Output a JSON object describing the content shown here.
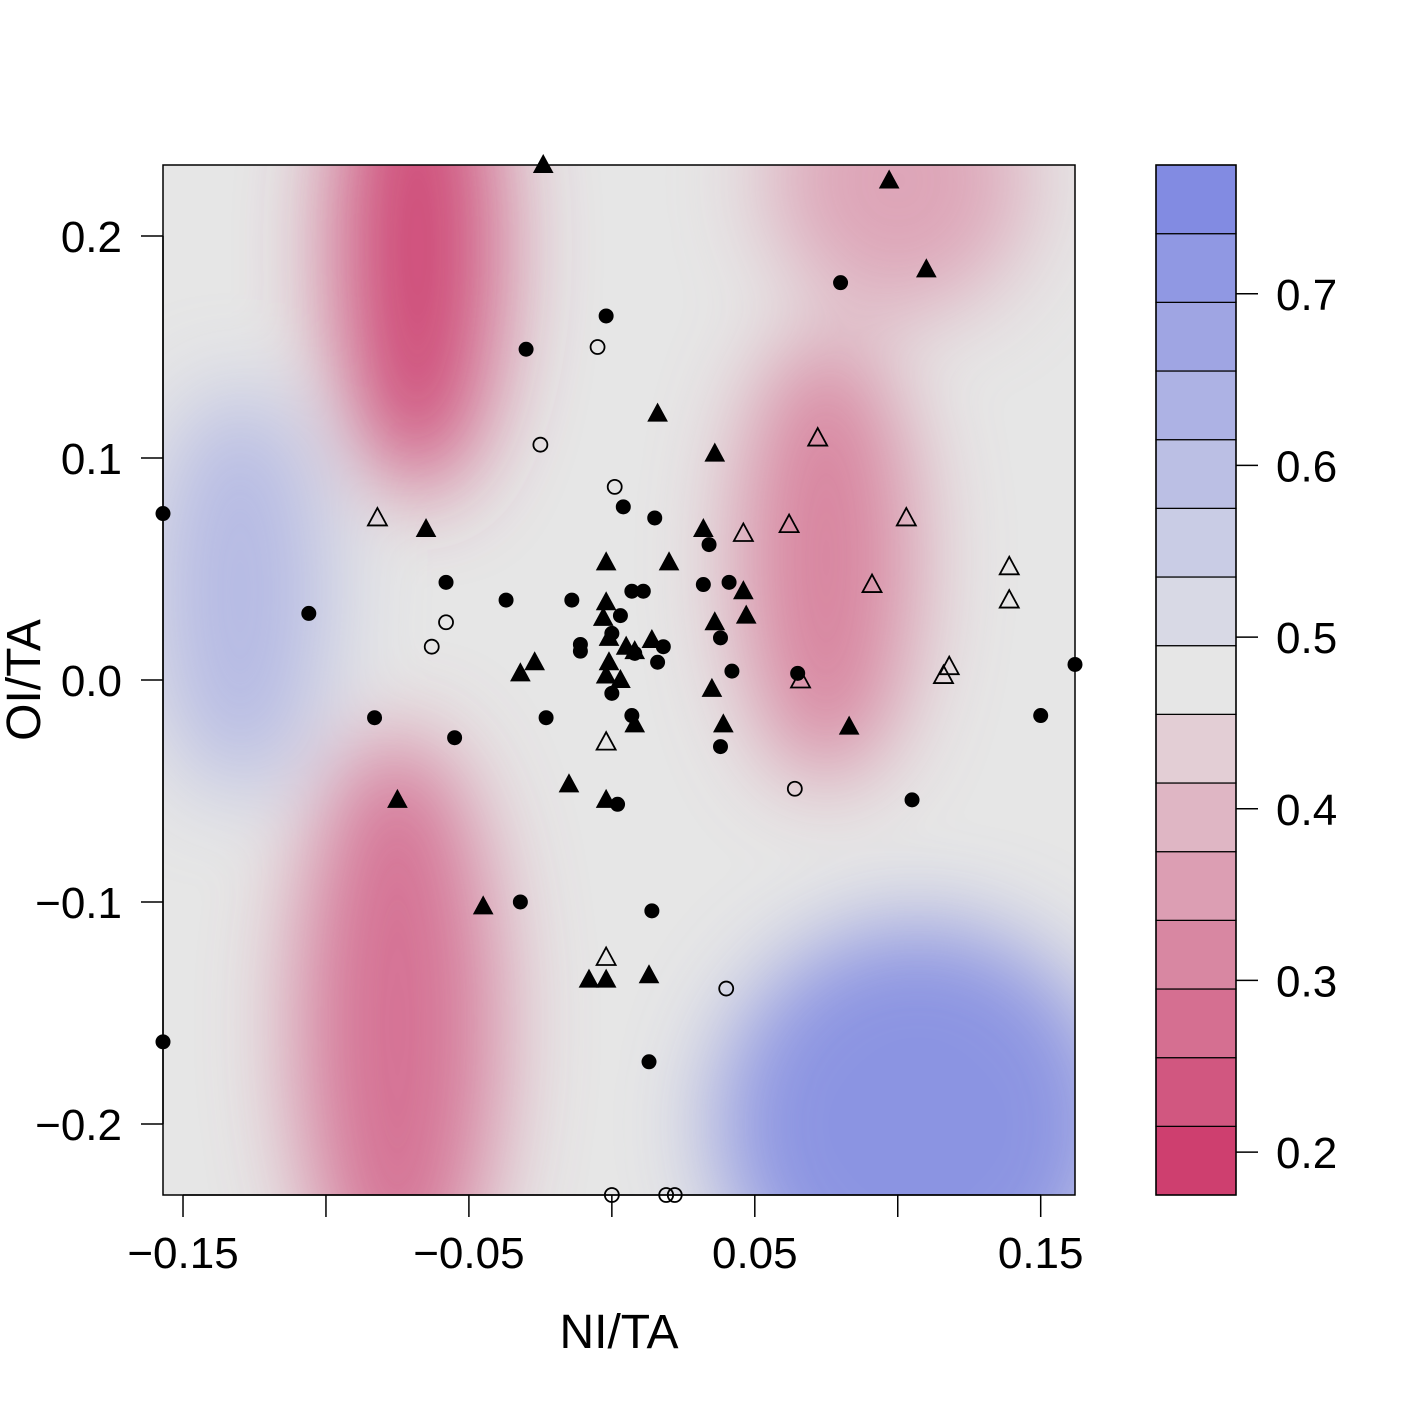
{
  "chart_data": {
    "type": "scatter",
    "subtype": "filled-contour with overlaid scatter points",
    "xlabel": "NI/TA",
    "ylabel": "OI/TA",
    "xlim": [
      -0.157,
      0.162
    ],
    "ylim": [
      -0.232,
      0.232
    ],
    "x_ticks": [
      -0.15,
      -0.1,
      -0.05,
      0,
      0.05,
      0.1,
      0.15
    ],
    "x_tick_labels": [
      "−0.15",
      "",
      "−0.05",
      "",
      "0.05",
      "",
      "0.15"
    ],
    "y_ticks": [
      0.2,
      0.1,
      0.0,
      -0.1,
      -0.2
    ],
    "y_tick_labels": [
      "0.2",
      "0.1",
      "0.0",
      "−0.1",
      "−0.2"
    ],
    "grid": false,
    "colorbar": {
      "range": [
        0.175,
        0.775
      ],
      "levels": 15,
      "low_color": "#cc3366",
      "mid_color": "#e6e6e6",
      "high_color": "#7b84e2",
      "ticks": [
        0.2,
        0.3,
        0.4,
        0.5,
        0.6,
        0.7
      ],
      "tick_labels": [
        "0.2",
        "0.3",
        "0.4",
        "0.5",
        "0.6",
        "0.7"
      ]
    },
    "contour_features": [
      {
        "x": -0.068,
        "y": 0.195,
        "value": 0.2
      },
      {
        "x": -0.075,
        "y": -0.155,
        "value": 0.27
      },
      {
        "x": 0.075,
        "y": 0.055,
        "value": 0.3
      },
      {
        "x": 0.1,
        "y": 0.225,
        "value": 0.36
      },
      {
        "x": 0.107,
        "y": -0.2,
        "value": 0.74
      },
      {
        "x": -0.13,
        "y": 0.04,
        "value": 0.62
      }
    ],
    "series": [
      {
        "marker": "filled-circle",
        "points": [
          [
            -0.157,
            0.075
          ],
          [
            -0.106,
            0.03
          ],
          [
            -0.083,
            -0.017
          ],
          [
            -0.058,
            0.044
          ],
          [
            -0.055,
            -0.026
          ],
          [
            -0.037,
            0.036
          ],
          [
            -0.03,
            0.149
          ],
          [
            -0.032,
            -0.1
          ],
          [
            -0.023,
            -0.017
          ],
          [
            -0.014,
            0.036
          ],
          [
            -0.011,
            0.013
          ],
          [
            -0.011,
            0.016
          ],
          [
            -0.002,
            0.164
          ],
          [
            0,
            0.021
          ],
          [
            0,
            -0.006
          ],
          [
            0.002,
            -0.056
          ],
          [
            0.003,
            0.029
          ],
          [
            0.004,
            0.078
          ],
          [
            0.007,
            -0.016
          ],
          [
            0.007,
            0.04
          ],
          [
            0.008,
            0.012
          ],
          [
            0.011,
            0.04
          ],
          [
            0.014,
            -0.104
          ],
          [
            0.015,
            0.073
          ],
          [
            0.016,
            0.008
          ],
          [
            0.018,
            0.015
          ],
          [
            0.032,
            0.043
          ],
          [
            0.034,
            0.061
          ],
          [
            0.038,
            0.019
          ],
          [
            0.038,
            -0.03
          ],
          [
            0.041,
            0.044
          ],
          [
            0.042,
            0.004
          ],
          [
            0.065,
            0.003
          ],
          [
            0.08,
            0.179
          ],
          [
            0.105,
            -0.054
          ],
          [
            0.15,
            -0.016
          ],
          [
            0.162,
            0.007
          ],
          [
            -0.157,
            -0.163
          ],
          [
            0.013,
            -0.172
          ]
        ]
      },
      {
        "marker": "open-circle",
        "points": [
          [
            -0.005,
            0.15
          ],
          [
            -0.025,
            0.106
          ],
          [
            0.001,
            0.087
          ],
          [
            -0.058,
            0.026
          ],
          [
            -0.063,
            0.015
          ],
          [
            0.064,
            -0.049
          ],
          [
            0.04,
            -0.139
          ],
          [
            0,
            -0.232
          ],
          [
            0.019,
            -0.232
          ],
          [
            0.022,
            -0.232
          ]
        ]
      },
      {
        "marker": "filled-triangle",
        "points": [
          [
            -0.024,
            0.232
          ],
          [
            0.097,
            0.225
          ],
          [
            0.11,
            0.185
          ],
          [
            0.016,
            0.12
          ],
          [
            0.036,
            0.102
          ],
          [
            -0.065,
            0.068
          ],
          [
            0.032,
            0.068
          ],
          [
            -0.002,
            0.053
          ],
          [
            0.02,
            0.053
          ],
          [
            0.046,
            0.04
          ],
          [
            -0.002,
            0.035
          ],
          [
            0.047,
            0.029
          ],
          [
            -0.003,
            0.028
          ],
          [
            0.036,
            0.026
          ],
          [
            -0.001,
            0.019
          ],
          [
            0.014,
            0.018
          ],
          [
            0.005,
            0.015
          ],
          [
            0.008,
            0.013
          ],
          [
            -0.027,
            0.008
          ],
          [
            -0.032,
            0.003
          ],
          [
            -0.001,
            0.008
          ],
          [
            0.003,
            0.0
          ],
          [
            -0.002,
            0.002
          ],
          [
            0.035,
            -0.004
          ],
          [
            0.039,
            -0.02
          ],
          [
            0.008,
            -0.02
          ],
          [
            0.083,
            -0.021
          ],
          [
            -0.015,
            -0.047
          ],
          [
            -0.075,
            -0.054
          ],
          [
            -0.002,
            -0.054
          ],
          [
            -0.045,
            -0.102
          ],
          [
            0.013,
            -0.133
          ],
          [
            -0.008,
            -0.135
          ],
          [
            -0.002,
            -0.135
          ]
        ]
      },
      {
        "marker": "open-triangle",
        "points": [
          [
            -0.082,
            0.073
          ],
          [
            0.072,
            0.109
          ],
          [
            0.046,
            0.066
          ],
          [
            0.062,
            0.07
          ],
          [
            0.103,
            0.073
          ],
          [
            0.091,
            0.043
          ],
          [
            0.139,
            0.051
          ],
          [
            0.139,
            0.036
          ],
          [
            0.116,
            0.002
          ],
          [
            0.118,
            0.006
          ],
          [
            0.066,
            0.0
          ],
          [
            -0.002,
            -0.028
          ],
          [
            -0.002,
            -0.125
          ]
        ]
      }
    ]
  }
}
